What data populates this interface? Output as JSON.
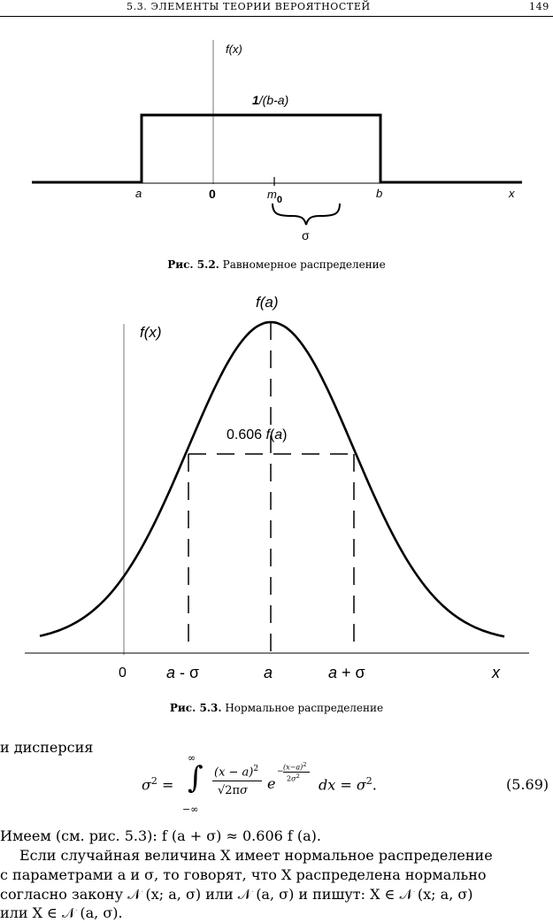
{
  "header": {
    "section": "5.3. ЭЛЕМЕНТЫ ТЕОРИИ ВЕРОЯТНОСТЕЙ",
    "page": "149"
  },
  "figure1": {
    "caption_label": "Рис. 5.2.",
    "caption_text": "Равномерное распределение",
    "labels": {
      "fx": "f(x)",
      "height": "1/(b-a)",
      "a": "a",
      "zero": "0",
      "m0": "m",
      "m0_sub": "0",
      "b": "b",
      "x": "x",
      "sigma": "σ"
    }
  },
  "figure2": {
    "caption_label": "Рис. 5.3.",
    "caption_text": "Нормальное распределение",
    "labels": {
      "fx": "f(x)",
      "fa": "f(a)",
      "level": "0.606 f(a)",
      "zero": "0",
      "a_minus": "a - σ",
      "a": "a",
      "a_plus": "a + σ",
      "x": "x"
    }
  },
  "text": {
    "intro": "и дисперсия",
    "eq_number": "(5.69)",
    "line1": "Имеем (см. рис. 5.3): f (a + σ) ≈ 0.606 f (a).",
    "para_l1": "Если случайная величина X имеет нормальное распределение",
    "para_l2": "с параметрами a и σ, то говорят, что X распределена нормально",
    "para_l3": "согласно закону 𝒩 (x; a, σ) или 𝒩 (a, σ) и пишут: X ∈ 𝒩 (x; a, σ)",
    "para_l4": "или X ∈ 𝒩 (a, σ)."
  }
}
